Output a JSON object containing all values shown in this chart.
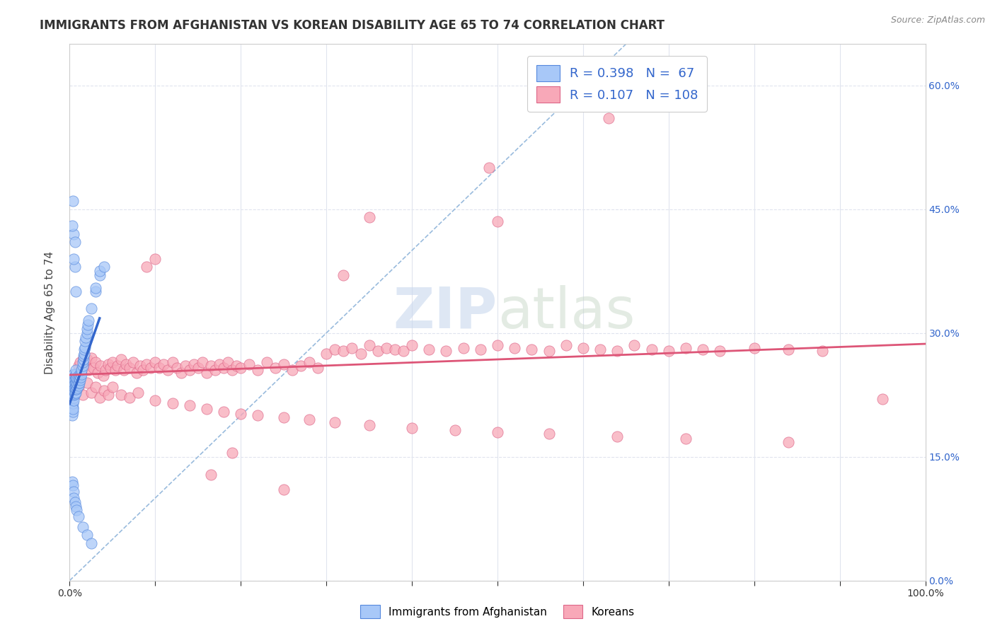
{
  "title": "IMMIGRANTS FROM AFGHANISTAN VS KOREAN DISABILITY AGE 65 TO 74 CORRELATION CHART",
  "source": "Source: ZipAtlas.com",
  "ylabel": "Disability Age 65 to 74",
  "xlim": [
    0,
    1.0
  ],
  "ylim": [
    0.0,
    0.65
  ],
  "ytick_vals": [
    0.0,
    0.15,
    0.3,
    0.45,
    0.6
  ],
  "ytick_labels": [
    "0.0%",
    "15.0%",
    "30.0%",
    "45.0%",
    "60.0%"
  ],
  "xtick_vals": [
    0.0,
    0.1,
    0.2,
    0.3,
    0.4,
    0.5,
    0.6,
    0.7,
    0.8,
    0.9,
    1.0
  ],
  "xtick_labels": [
    "0.0%",
    "",
    "",
    "",
    "",
    "",
    "",
    "",
    "",
    "",
    "100.0%"
  ],
  "watermark_zip": "ZIP",
  "watermark_atlas": "atlas",
  "legend1_label": "Immigrants from Afghanistan",
  "legend2_label": "Koreans",
  "R1": "0.398",
  "N1": "67",
  "R2": "0.107",
  "N2": "108",
  "color_afg": "#a8c8f8",
  "color_kor": "#f8a8b8",
  "edge_color_afg": "#5588dd",
  "edge_color_kor": "#dd6688",
  "trend_color_afg": "#3366cc",
  "trend_color_kor": "#dd5577",
  "diag_color": "#99bbdd",
  "background_color": "#ffffff",
  "grid_color": "#e0e4ee",
  "title_color": "#333333",
  "right_tick_color": "#3366cc",
  "afg_x": [
    0.003,
    0.003,
    0.004,
    0.004,
    0.004,
    0.004,
    0.005,
    0.005,
    0.005,
    0.005,
    0.005,
    0.005,
    0.005,
    0.005,
    0.006,
    0.006,
    0.006,
    0.006,
    0.006,
    0.006,
    0.006,
    0.007,
    0.007,
    0.007,
    0.007,
    0.007,
    0.007,
    0.007,
    0.008,
    0.008,
    0.008,
    0.008,
    0.009,
    0.009,
    0.009,
    0.01,
    0.01,
    0.01,
    0.01,
    0.011,
    0.011,
    0.012,
    0.012,
    0.013,
    0.013,
    0.014,
    0.014,
    0.015,
    0.015,
    0.016,
    0.016,
    0.017,
    0.017,
    0.018,
    0.018,
    0.019,
    0.02,
    0.02,
    0.021,
    0.022,
    0.025,
    0.03,
    0.03,
    0.035,
    0.035,
    0.04
  ],
  "afg_y": [
    0.218,
    0.2,
    0.21,
    0.205,
    0.215,
    0.208,
    0.222,
    0.218,
    0.225,
    0.23,
    0.235,
    0.24,
    0.245,
    0.25,
    0.226,
    0.228,
    0.232,
    0.235,
    0.24,
    0.244,
    0.248,
    0.228,
    0.232,
    0.236,
    0.24,
    0.245,
    0.25,
    0.255,
    0.232,
    0.236,
    0.24,
    0.246,
    0.234,
    0.238,
    0.244,
    0.236,
    0.24,
    0.244,
    0.248,
    0.24,
    0.245,
    0.243,
    0.248,
    0.247,
    0.252,
    0.25,
    0.255,
    0.26,
    0.265,
    0.268,
    0.272,
    0.275,
    0.28,
    0.283,
    0.29,
    0.295,
    0.3,
    0.305,
    0.31,
    0.315,
    0.33,
    0.35,
    0.355,
    0.37,
    0.375,
    0.38
  ],
  "afg_outliers_x": [
    0.005,
    0.006,
    0.007,
    0.003,
    0.004,
    0.005,
    0.006
  ],
  "afg_outliers_y": [
    0.42,
    0.38,
    0.35,
    0.43,
    0.46,
    0.39,
    0.41
  ],
  "afg_low_x": [
    0.003,
    0.004,
    0.005,
    0.005,
    0.006,
    0.007,
    0.008,
    0.01,
    0.015,
    0.02,
    0.025
  ],
  "afg_low_y": [
    0.12,
    0.115,
    0.108,
    0.1,
    0.095,
    0.09,
    0.085,
    0.078,
    0.065,
    0.055,
    0.045
  ],
  "kor_x": [
    0.008,
    0.01,
    0.012,
    0.014,
    0.016,
    0.018,
    0.02,
    0.022,
    0.025,
    0.028,
    0.03,
    0.033,
    0.036,
    0.039,
    0.042,
    0.045,
    0.048,
    0.05,
    0.053,
    0.056,
    0.06,
    0.063,
    0.066,
    0.07,
    0.074,
    0.078,
    0.082,
    0.086,
    0.09,
    0.095,
    0.1,
    0.105,
    0.11,
    0.115,
    0.12,
    0.125,
    0.13,
    0.135,
    0.14,
    0.145,
    0.15,
    0.155,
    0.16,
    0.165,
    0.17,
    0.175,
    0.18,
    0.185,
    0.19,
    0.195,
    0.2,
    0.21,
    0.22,
    0.23,
    0.24,
    0.25,
    0.26,
    0.27,
    0.28,
    0.29,
    0.3,
    0.31,
    0.32,
    0.33,
    0.34,
    0.35,
    0.36,
    0.37,
    0.38,
    0.39,
    0.4,
    0.42,
    0.44,
    0.46,
    0.48,
    0.5,
    0.52,
    0.54,
    0.56,
    0.58,
    0.6,
    0.62,
    0.64,
    0.66,
    0.68,
    0.7,
    0.72,
    0.74,
    0.76,
    0.8,
    0.84,
    0.88,
    0.95
  ],
  "kor_y": [
    0.245,
    0.26,
    0.265,
    0.255,
    0.27,
    0.26,
    0.268,
    0.255,
    0.27,
    0.258,
    0.265,
    0.252,
    0.26,
    0.248,
    0.255,
    0.262,
    0.258,
    0.265,
    0.255,
    0.26,
    0.268,
    0.255,
    0.262,
    0.258,
    0.265,
    0.252,
    0.26,
    0.255,
    0.262,
    0.258,
    0.265,
    0.258,
    0.262,
    0.255,
    0.265,
    0.258,
    0.252,
    0.26,
    0.255,
    0.262,
    0.258,
    0.265,
    0.252,
    0.26,
    0.255,
    0.262,
    0.258,
    0.265,
    0.255,
    0.26,
    0.258,
    0.262,
    0.255,
    0.265,
    0.258,
    0.262,
    0.255,
    0.26,
    0.265,
    0.258,
    0.275,
    0.28,
    0.278,
    0.282,
    0.275,
    0.285,
    0.278,
    0.282,
    0.28,
    0.278,
    0.285,
    0.28,
    0.278,
    0.282,
    0.28,
    0.285,
    0.282,
    0.28,
    0.278,
    0.285,
    0.282,
    0.28,
    0.278,
    0.285,
    0.28,
    0.278,
    0.282,
    0.28,
    0.278,
    0.282,
    0.28,
    0.278,
    0.22
  ],
  "kor_outliers_x": [
    0.63,
    0.49,
    0.35,
    0.1,
    0.09,
    0.32,
    0.5,
    0.19,
    0.25,
    0.165,
    0.01,
    0.015,
    0.02,
    0.025,
    0.03,
    0.035,
    0.04,
    0.045,
    0.05,
    0.06,
    0.07,
    0.08,
    0.1,
    0.12,
    0.14,
    0.16,
    0.18,
    0.2,
    0.22,
    0.25,
    0.28,
    0.31,
    0.35,
    0.4,
    0.45,
    0.5,
    0.56,
    0.64,
    0.72,
    0.84
  ],
  "kor_outliers_y": [
    0.56,
    0.5,
    0.44,
    0.39,
    0.38,
    0.37,
    0.435,
    0.155,
    0.11,
    0.128,
    0.235,
    0.225,
    0.24,
    0.228,
    0.235,
    0.222,
    0.23,
    0.225,
    0.235,
    0.225,
    0.222,
    0.228,
    0.218,
    0.215,
    0.212,
    0.208,
    0.205,
    0.202,
    0.2,
    0.198,
    0.195,
    0.192,
    0.188,
    0.185,
    0.182,
    0.18,
    0.178,
    0.175,
    0.172,
    0.168
  ]
}
